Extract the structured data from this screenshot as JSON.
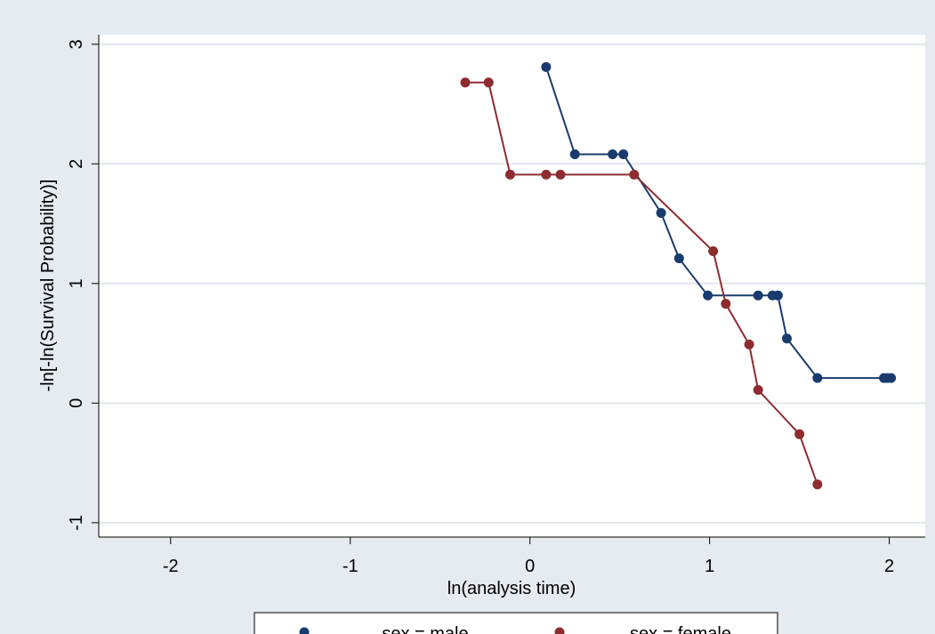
{
  "chart_data": {
    "type": "line",
    "title": "",
    "xlabel": "ln(analysis time)",
    "ylabel": "-ln[-ln(Survival Probability)]",
    "xlim": [
      -2.4,
      2.2
    ],
    "ylim": [
      -1.12,
      3.08
    ],
    "x_ticks": [
      -2,
      -1,
      0,
      1,
      2
    ],
    "y_ticks": [
      -1,
      0,
      1,
      2,
      3
    ],
    "x_tick_labels": [
      "-2",
      "-1",
      "0",
      "1",
      "2"
    ],
    "y_tick_labels": [
      "-1",
      "0",
      "1",
      "2",
      "3"
    ],
    "grid": "horizontal",
    "legend_position": "bottom",
    "series": [
      {
        "name": "sex = male",
        "color": "#1a3b6e",
        "x": [
          0.09,
          0.25,
          0.46,
          0.52,
          0.73,
          0.83,
          0.99,
          1.27,
          1.35,
          1.38,
          1.43,
          1.6,
          1.97,
          1.99,
          2.01
        ],
        "y": [
          2.81,
          2.08,
          2.08,
          2.08,
          1.59,
          1.21,
          0.9,
          0.9,
          0.9,
          0.9,
          0.54,
          0.21,
          0.21,
          0.21,
          0.21
        ]
      },
      {
        "name": "sex = female",
        "color": "#8e2c30",
        "x": [
          -0.36,
          -0.23,
          -0.11,
          0.09,
          0.17,
          0.58,
          1.02,
          1.09,
          1.22,
          1.27,
          1.5,
          1.6
        ],
        "y": [
          2.68,
          2.68,
          1.91,
          1.91,
          1.91,
          1.91,
          1.27,
          0.83,
          0.49,
          0.11,
          -0.26,
          -0.68
        ]
      }
    ]
  }
}
